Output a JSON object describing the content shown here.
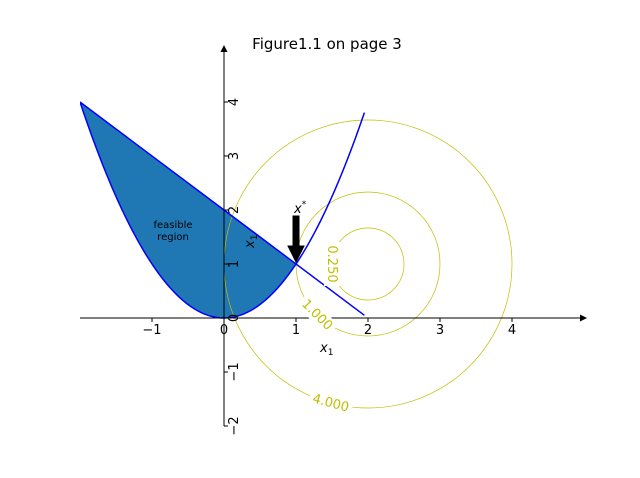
{
  "chart_data": {
    "type": "line",
    "title": "Figure1.1 on page 3",
    "xlabel": "x",
    "xlabel_sub": "1",
    "ylabel": "x",
    "ylabel_sub": "1",
    "xlim": [
      -2,
      5
    ],
    "ylim": [
      -2,
      5
    ],
    "x_ticks": [
      {
        "value": -1,
        "label": "−1"
      },
      {
        "value": 0,
        "label": "0"
      },
      {
        "value": 1,
        "label": "1"
      },
      {
        "value": 2,
        "label": "2"
      },
      {
        "value": 3,
        "label": "3"
      },
      {
        "value": 4,
        "label": "4"
      }
    ],
    "y_ticks": [
      {
        "value": -2,
        "label": "−2"
      },
      {
        "value": -1,
        "label": "−1"
      },
      {
        "value": 0,
        "label": "0"
      },
      {
        "value": 1,
        "label": "1"
      },
      {
        "value": 2,
        "label": "2"
      },
      {
        "value": 3,
        "label": "3"
      },
      {
        "value": 4,
        "label": "4"
      }
    ],
    "grid": false,
    "curves": [
      {
        "kind": "parabola",
        "equation": "y = x^2",
        "x_range": [
          -2,
          1.95
        ],
        "color": "#0000ff"
      },
      {
        "kind": "line",
        "equation": "y = 2 - x",
        "x_range": [
          -2,
          1.95
        ],
        "color": "#0000ff"
      }
    ],
    "feasible_region": {
      "label_line1": "feasible",
      "label_line2": "region",
      "color": "#1f77b4",
      "bounded_by": [
        "y = x^2",
        "y = 2 - x"
      ],
      "x_range": [
        -2,
        1
      ]
    },
    "contours": {
      "center": [
        2,
        1
      ],
      "color": "#bfbf00",
      "levels": [
        0.25,
        1,
        4
      ],
      "labels": [
        "0.250",
        "1.000",
        "4.000"
      ]
    },
    "optimum": {
      "point": [
        1,
        1
      ],
      "label": "x",
      "label_sup": "*"
    }
  }
}
